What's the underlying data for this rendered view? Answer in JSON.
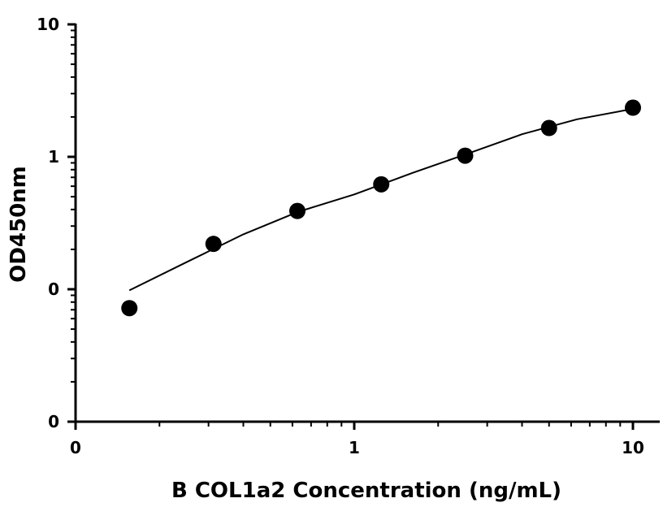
{
  "chart_data": {
    "type": "scatter",
    "title": "",
    "xlabel": "B COL1a2 Concentration (ng/mL)",
    "ylabel": "OD450nm",
    "x_scale": "log",
    "y_scale": "log",
    "xlim": [
      0.1,
      12
    ],
    "ylim": [
      0.01,
      10
    ],
    "x_ticks": [
      {
        "value": 0.1,
        "label": "0"
      },
      {
        "value": 1,
        "label": "1"
      },
      {
        "value": 10,
        "label": "10"
      }
    ],
    "y_ticks": [
      {
        "value": 0.01,
        "label": "0"
      },
      {
        "value": 0.1,
        "label": "0"
      },
      {
        "value": 1,
        "label": "1"
      },
      {
        "value": 10,
        "label": "10"
      }
    ],
    "grid": false,
    "legend": "none",
    "colors": {
      "marker": "#000000",
      "curve": "#000000",
      "axis": "#000000"
    },
    "series": [
      {
        "x": [
          0.156,
          0.3125,
          0.625,
          1.25,
          2.5,
          5,
          10
        ],
        "y": [
          0.072,
          0.22,
          0.39,
          0.62,
          1.02,
          1.65,
          2.35
        ]
      }
    ],
    "fit_curve": {
      "x": [
        0.156,
        0.25,
        0.4,
        0.63,
        1.0,
        1.6,
        2.5,
        4.0,
        6.3,
        10
      ],
      "y": [
        0.098,
        0.16,
        0.26,
        0.385,
        0.52,
        0.75,
        1.04,
        1.48,
        1.92,
        2.3
      ]
    }
  }
}
